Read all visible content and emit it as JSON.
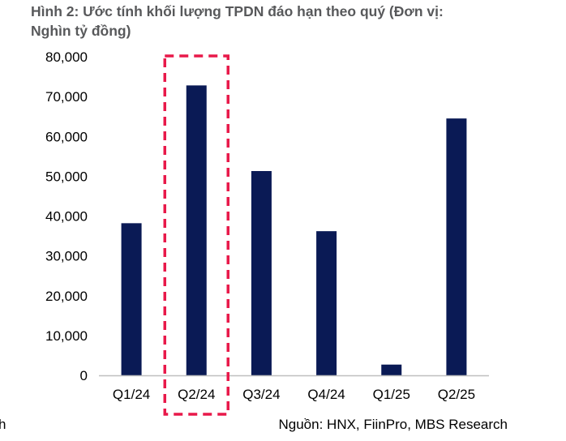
{
  "figure": {
    "title_line1": "Hình 2: Ước tính khối lượng TPDN đáo hạn theo quý (Đơn vị:",
    "title_line2": "Nghìn tỷ đồng)",
    "source": "Nguồn: HNX, FiinPro, MBS Research",
    "left_edge_fragment": "h"
  },
  "colors": {
    "bar": "#0a1a55",
    "highlight_box": "#e8194a",
    "axis": "#bfbfbf",
    "title": "#58595b"
  },
  "chart_data": {
    "type": "bar",
    "categories": [
      "Q1/24",
      "Q2/24",
      "Q3/24",
      "Q4/24",
      "Q1/25",
      "Q2/25"
    ],
    "values": [
      38200,
      72800,
      51300,
      36200,
      2700,
      64500
    ],
    "ylim": [
      0,
      80000
    ],
    "yticks": [
      0,
      10000,
      20000,
      30000,
      40000,
      50000,
      60000,
      70000,
      80000
    ],
    "ytick_labels": [
      "0",
      "10,000",
      "20,000",
      "30,000",
      "40,000",
      "50,000",
      "60,000",
      "70,000",
      "80,000"
    ],
    "title": "Hình 2: Ước tính khối lượng TPDN đáo hạn theo quý (Đơn vị: Nghìn tỷ đồng)",
    "xlabel": "",
    "ylabel": "",
    "grid": false,
    "legend": "none",
    "highlight": "Q2/24"
  }
}
